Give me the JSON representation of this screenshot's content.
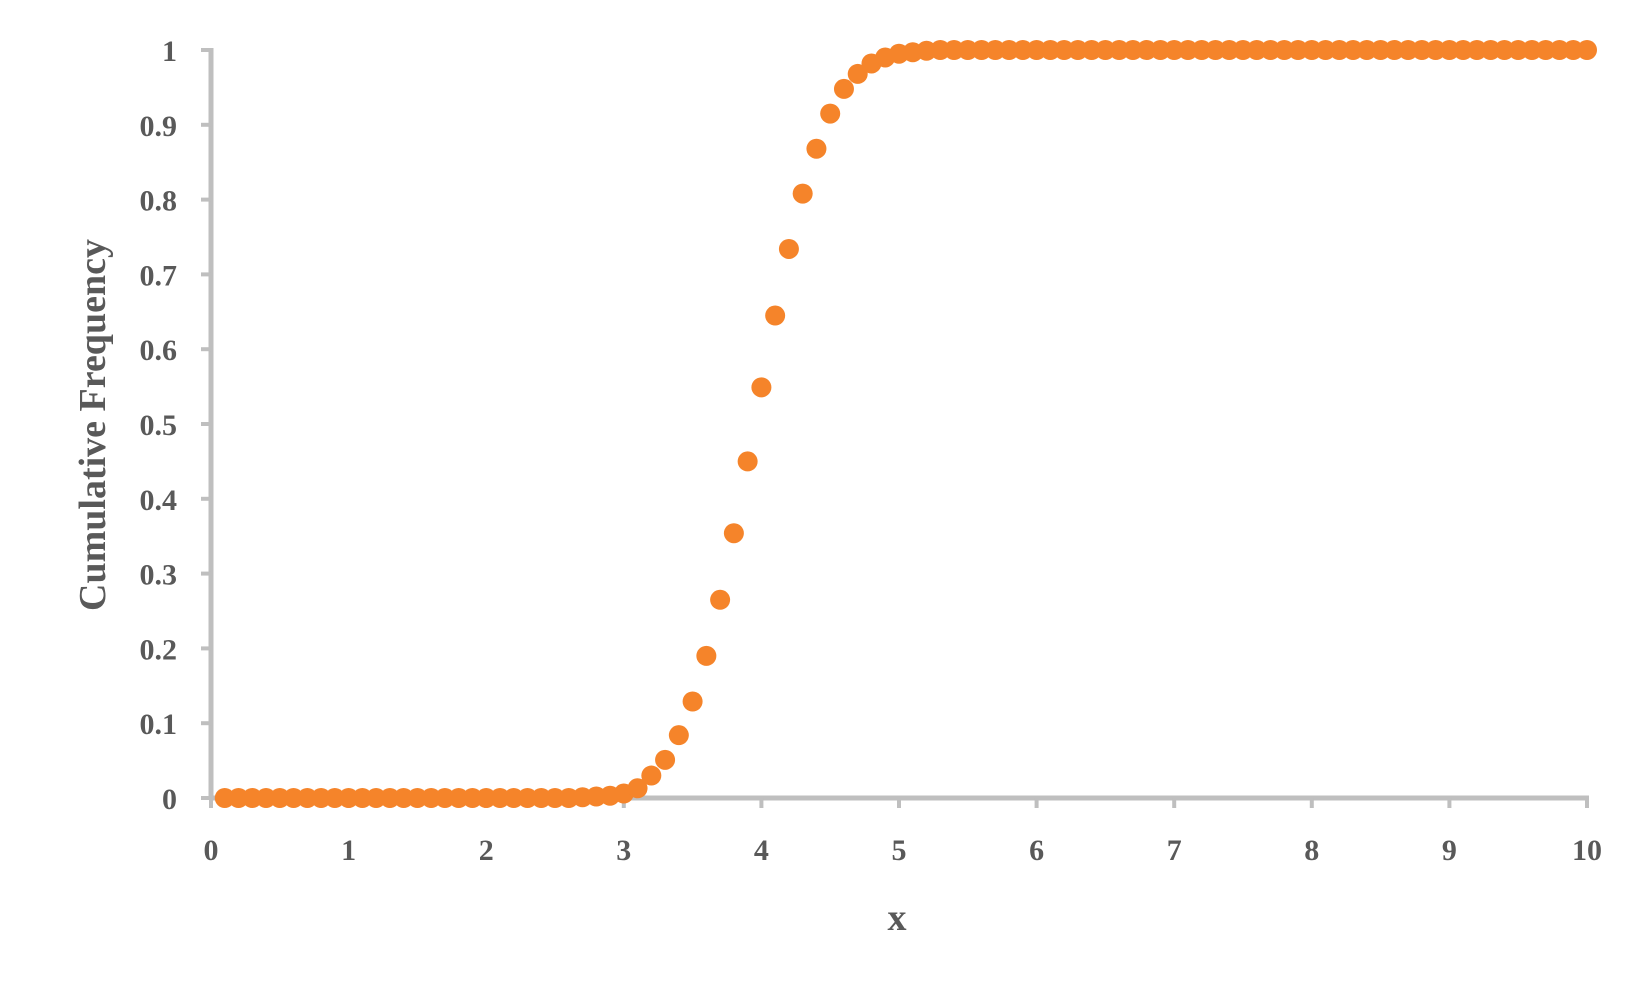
{
  "chart_data": {
    "type": "scatter",
    "title": "",
    "xlabel": "x",
    "ylabel": "Cumulative Frequency",
    "xlim": [
      0,
      10
    ],
    "ylim": [
      0,
      1
    ],
    "x_ticks": [
      "0",
      "1",
      "2",
      "3",
      "4",
      "5",
      "6",
      "7",
      "8",
      "9",
      "10"
    ],
    "y_ticks": [
      "0",
      "0.1",
      "0.2",
      "0.3",
      "0.4",
      "0.5",
      "0.6",
      "0.7",
      "0.8",
      "0.9",
      "1"
    ],
    "grid": false,
    "legend": "none",
    "series": [
      {
        "marker": "circle",
        "color": "#F5842A",
        "x": [
          0.1,
          0.2,
          0.3,
          0.4,
          0.5,
          0.6,
          0.7,
          0.8,
          0.9,
          1.0,
          1.1,
          1.2,
          1.3,
          1.4,
          1.5,
          1.6,
          1.7,
          1.8,
          1.9,
          2.0,
          2.1,
          2.2,
          2.3,
          2.4,
          2.5,
          2.6,
          2.7,
          2.8,
          2.9,
          3.0,
          3.1,
          3.2,
          3.3,
          3.4,
          3.5,
          3.6,
          3.7,
          3.8,
          3.9,
          4.0,
          4.1,
          4.2,
          4.3,
          4.4,
          4.5,
          4.6,
          4.7,
          4.8,
          4.9,
          5.0,
          5.1,
          5.2,
          5.3,
          5.4,
          5.5,
          5.6,
          5.7,
          5.8,
          5.9,
          6.0,
          6.1,
          6.2,
          6.3,
          6.4,
          6.5,
          6.6,
          6.7,
          6.8,
          6.9,
          7.0,
          7.1,
          7.2,
          7.3,
          7.4,
          7.5,
          7.6,
          7.7,
          7.8,
          7.9,
          8.0,
          8.1,
          8.2,
          8.3,
          8.4,
          8.5,
          8.6,
          8.7,
          8.8,
          8.9,
          9.0,
          9.1,
          9.2,
          9.3,
          9.4,
          9.5,
          9.6,
          9.7,
          9.8,
          9.9,
          10.0
        ],
        "y": [
          0,
          0,
          0,
          0,
          0,
          0,
          0,
          0,
          0,
          0,
          0,
          0,
          0,
          0,
          0,
          0,
          0,
          0,
          0,
          0,
          0,
          0,
          0,
          0,
          0,
          0,
          0.001,
          0.002,
          0.003,
          0.006,
          0.013,
          0.03,
          0.051,
          0.084,
          0.129,
          0.19,
          0.265,
          0.354,
          0.45,
          0.549,
          0.645,
          0.734,
          0.808,
          0.868,
          0.915,
          0.948,
          0.968,
          0.982,
          0.99,
          0.995,
          0.997,
          0.999,
          1,
          1,
          1,
          1,
          1,
          1,
          1,
          1,
          1,
          1,
          1,
          1,
          1,
          1,
          1,
          1,
          1,
          1,
          1,
          1,
          1,
          1,
          1,
          1,
          1,
          1,
          1,
          1,
          1,
          1,
          1,
          1,
          1,
          1,
          1,
          1,
          1,
          1,
          1,
          1,
          1,
          1,
          1,
          1,
          1,
          1,
          1,
          1
        ]
      }
    ]
  }
}
